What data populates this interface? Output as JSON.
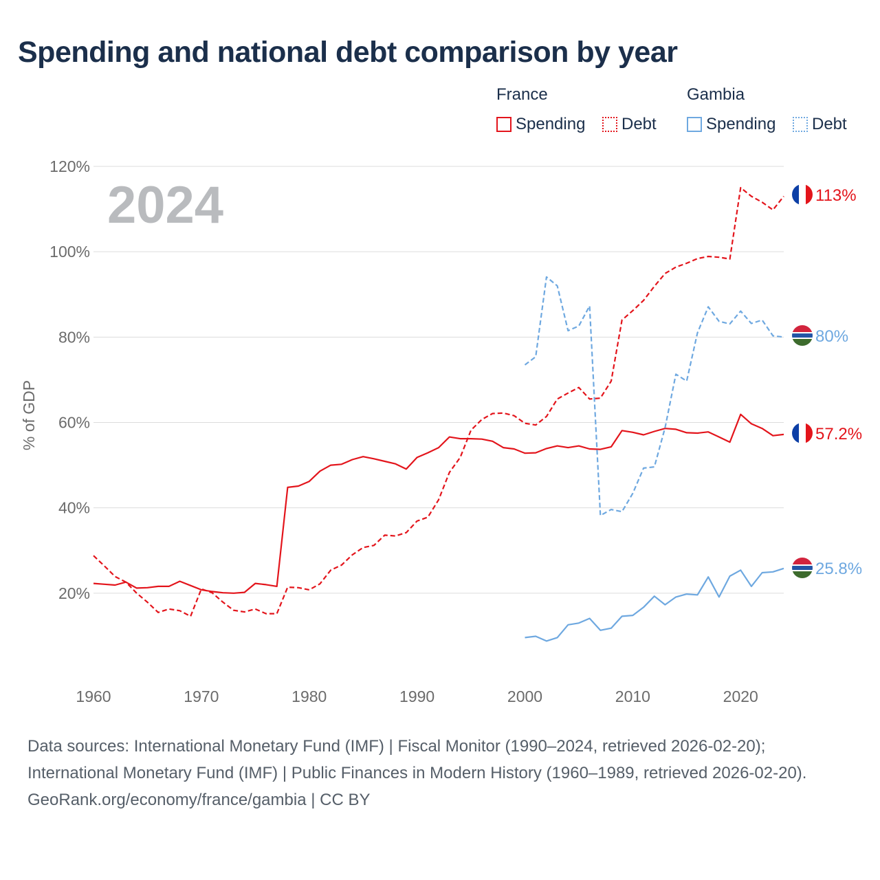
{
  "title": "Spending and national debt comparison by year",
  "legend": {
    "groups": [
      {
        "name": "France",
        "items": [
          {
            "label": "Spending",
            "style": "solid",
            "color": "#e3141b"
          },
          {
            "label": "Debt",
            "style": "dotted",
            "color": "#e3141b"
          }
        ]
      },
      {
        "name": "Gambia",
        "items": [
          {
            "label": "Spending",
            "style": "solid",
            "color": "#6ea8e0"
          },
          {
            "label": "Debt",
            "style": "dotted",
            "color": "#6ea8e0"
          }
        ]
      }
    ]
  },
  "chart_data": {
    "type": "line",
    "year_label": "2024",
    "ylabel": "% of GDP",
    "xlim": [
      1960,
      2024
    ],
    "ylim": [
      0,
      120
    ],
    "y_ticks": [
      "20%",
      "40%",
      "60%",
      "80%",
      "100%",
      "120%"
    ],
    "y_tick_values": [
      20,
      40,
      60,
      80,
      100,
      120
    ],
    "x_ticks": [
      "1960",
      "1970",
      "1980",
      "1990",
      "2000",
      "2010",
      "2020"
    ],
    "x_tick_values": [
      1960,
      1970,
      1980,
      1990,
      2000,
      2010,
      2020
    ],
    "series": [
      {
        "name": "France Spending",
        "country": "France",
        "measure": "Spending",
        "color": "#e3141b",
        "dash": "solid",
        "end_label": "57.2%",
        "flag": "france",
        "x": [
          1960,
          1961,
          1962,
          1963,
          1964,
          1965,
          1966,
          1967,
          1968,
          1969,
          1970,
          1971,
          1972,
          1973,
          1974,
          1975,
          1976,
          1977,
          1978,
          1979,
          1980,
          1981,
          1982,
          1983,
          1984,
          1985,
          1986,
          1987,
          1988,
          1989,
          1990,
          1991,
          1992,
          1993,
          1994,
          1995,
          1996,
          1997,
          1998,
          1999,
          2000,
          2001,
          2002,
          2003,
          2004,
          2005,
          2006,
          2007,
          2008,
          2009,
          2010,
          2011,
          2012,
          2013,
          2014,
          2015,
          2016,
          2017,
          2018,
          2019,
          2020,
          2021,
          2022,
          2023,
          2024
        ],
        "values": [
          22.3,
          22.1,
          21.9,
          22.6,
          21.2,
          21.3,
          21.6,
          21.6,
          22.8,
          21.8,
          20.8,
          20.4,
          20.1,
          20.0,
          20.2,
          22.3,
          22.0,
          21.6,
          44.8,
          45.1,
          46.2,
          48.6,
          50.0,
          50.2,
          51.3,
          52.0,
          51.5,
          50.9,
          50.3,
          49.1,
          51.8,
          52.9,
          54.1,
          56.6,
          56.2,
          56.2,
          56.1,
          55.6,
          54.1,
          53.8,
          52.8,
          52.9,
          53.9,
          54.5,
          54.1,
          54.5,
          53.8,
          53.7,
          54.3,
          58.1,
          57.7,
          57.1,
          57.9,
          58.6,
          58.4,
          57.6,
          57.5,
          57.8,
          56.6,
          55.4,
          61.9,
          59.7,
          58.6,
          56.9,
          57.2
        ]
      },
      {
        "name": "France Debt",
        "country": "France",
        "measure": "Debt",
        "color": "#e3141b",
        "dash": "dashed",
        "end_label": "113%",
        "flag": "france",
        "x": [
          1960,
          1961,
          1962,
          1963,
          1964,
          1965,
          1966,
          1967,
          1968,
          1969,
          1970,
          1971,
          1972,
          1973,
          1974,
          1975,
          1976,
          1977,
          1978,
          1979,
          1980,
          1981,
          1982,
          1983,
          1984,
          1985,
          1986,
          1987,
          1988,
          1989,
          1990,
          1991,
          1992,
          1993,
          1994,
          1995,
          1996,
          1997,
          1998,
          1999,
          2000,
          2001,
          2002,
          2003,
          2004,
          2005,
          2006,
          2007,
          2008,
          2009,
          2010,
          2011,
          2012,
          2013,
          2014,
          2015,
          2016,
          2017,
          2018,
          2019,
          2020,
          2021,
          2022,
          2023,
          2024
        ],
        "values": [
          28.8,
          26.4,
          23.9,
          22.6,
          20.0,
          17.9,
          15.5,
          16.3,
          15.9,
          14.6,
          21.0,
          20.1,
          17.9,
          16.0,
          15.6,
          16.3,
          15.2,
          15.2,
          21.4,
          21.3,
          20.8,
          22.2,
          25.4,
          26.6,
          29.0,
          30.7,
          31.2,
          33.6,
          33.4,
          34.2,
          36.9,
          37.8,
          41.9,
          48.3,
          51.8,
          58.2,
          60.7,
          62.1,
          62.2,
          61.6,
          59.8,
          59.4,
          61.4,
          65.5,
          66.9,
          68.2,
          65.5,
          65.7,
          69.7,
          84.0,
          86.2,
          88.6,
          91.9,
          94.9,
          96.4,
          97.3,
          98.4,
          98.9,
          98.7,
          98.3,
          115.0,
          113.0,
          111.6,
          109.8,
          113.0
        ]
      },
      {
        "name": "Gambia Spending",
        "country": "Gambia",
        "measure": "Spending",
        "color": "#6ea8e0",
        "dash": "solid",
        "end_label": "25.8%",
        "flag": "gambia",
        "x": [
          2000,
          2001,
          2002,
          2003,
          2004,
          2005,
          2006,
          2007,
          2008,
          2009,
          2010,
          2011,
          2012,
          2013,
          2014,
          2015,
          2016,
          2017,
          2018,
          2019,
          2020,
          2021,
          2022,
          2023,
          2024
        ],
        "values": [
          9.6,
          9.9,
          8.8,
          9.6,
          12.6,
          13.0,
          14.1,
          11.3,
          11.8,
          14.6,
          14.8,
          16.7,
          19.3,
          17.3,
          19.1,
          19.8,
          19.6,
          23.8,
          19.1,
          24.0,
          25.4,
          21.6,
          24.8,
          25.0,
          25.8
        ]
      },
      {
        "name": "Gambia Debt",
        "country": "Gambia",
        "measure": "Debt",
        "color": "#6ea8e0",
        "dash": "dashed",
        "end_label": "80%",
        "flag": "gambia",
        "x": [
          2000,
          2001,
          2002,
          2003,
          2004,
          2005,
          2006,
          2007,
          2008,
          2009,
          2010,
          2011,
          2012,
          2013,
          2014,
          2015,
          2016,
          2017,
          2018,
          2019,
          2020,
          2021,
          2022,
          2023,
          2024
        ],
        "values": [
          73.5,
          75.4,
          94.1,
          92.0,
          81.5,
          82.6,
          87.3,
          38.2,
          39.6,
          39.1,
          43.4,
          49.3,
          49.6,
          58.8,
          71.3,
          69.7,
          81.0,
          87.1,
          83.7,
          83.1,
          86.1,
          83.2,
          84.0,
          80.3,
          80.0
        ]
      }
    ]
  },
  "footer": {
    "sources": "Data sources: International Monetary Fund (IMF) | Fiscal Monitor (1990–2024, retrieved 2026-02-20); International Monetary Fund (IMF) | Public Finances in Modern History (1960–1989, retrieved 2026-02-20).",
    "credit": "GeoRank.org/economy/france/gambia | CC BY"
  }
}
